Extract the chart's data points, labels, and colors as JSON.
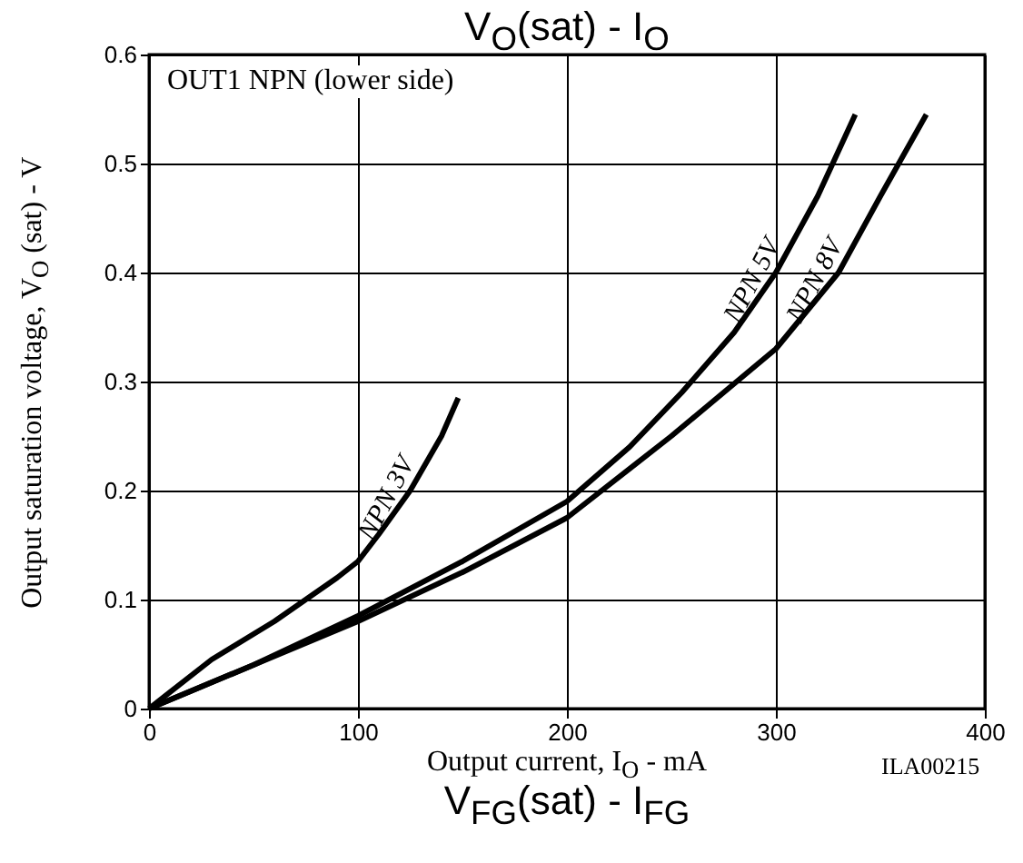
{
  "chart_data": {
    "type": "line",
    "title": "V$_{O}$(sat) - I$_{O}$",
    "xlabel": "Output current, I$_{O}$ - mA",
    "ylabel": "Output saturation voltage, V$_{O}$ (sat)  -  V",
    "annotations": [
      "OUT1 NPN (lower side)",
      "ILA00215",
      "V$_{FG}$(sat) - I$_{FG}$"
    ],
    "xlim": [
      0,
      400
    ],
    "xticks": [
      0,
      100,
      200,
      300,
      400
    ],
    "ylim": [
      0,
      0.6
    ],
    "yticks": [
      0,
      0.1,
      0.2,
      0.3,
      0.4,
      0.5,
      0.6
    ],
    "grid": true,
    "legend": false,
    "line_style": "solid",
    "series": [
      {
        "name": "NPN 3V",
        "color": "#000000",
        "x": [
          0,
          30,
          60,
          90,
          100,
          110,
          125,
          140,
          148
        ],
        "values": [
          0,
          0.045,
          0.08,
          0.12,
          0.135,
          0.16,
          0.2,
          0.25,
          0.285
        ]
      },
      {
        "name": "NPN 5V",
        "color": "#000000",
        "x": [
          0,
          50,
          100,
          150,
          200,
          230,
          255,
          280,
          300,
          320,
          338
        ],
        "values": [
          0,
          0.04,
          0.085,
          0.135,
          0.19,
          0.24,
          0.29,
          0.345,
          0.4,
          0.47,
          0.545
        ]
      },
      {
        "name": "NPN 8V",
        "color": "#000000",
        "x": [
          0,
          50,
          100,
          150,
          200,
          250,
          300,
          330,
          350,
          372
        ],
        "values": [
          0,
          0.04,
          0.08,
          0.125,
          0.175,
          0.25,
          0.33,
          0.4,
          0.47,
          0.545
        ]
      }
    ]
  }
}
